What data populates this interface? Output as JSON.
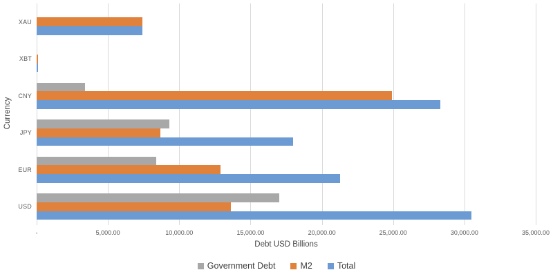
{
  "chart_data": {
    "type": "bar",
    "orientation": "horizontal",
    "title": "",
    "xlabel": "Debt USD Billions",
    "ylabel": "Currency",
    "categories_top_to_bottom": [
      "XAU",
      "XBT",
      "CNY",
      "JPY",
      "EUR",
      "USD"
    ],
    "series": [
      {
        "name": "Government Debt",
        "color": "#a8a8a8",
        "values": [
          0,
          0,
          3400,
          9300,
          8400,
          17000
        ]
      },
      {
        "name": "M2",
        "color": "#e0813c",
        "values": [
          7400,
          100,
          24900,
          8700,
          12900,
          13600
        ]
      },
      {
        "name": "Total",
        "color": "#6b9bd2",
        "values": [
          7400,
          100,
          28300,
          18000,
          21300,
          30500
        ]
      }
    ],
    "xlim": [
      0,
      35000
    ],
    "xtick_labels": [
      "-",
      "5,000.00",
      "10,000.00",
      "15,000.00",
      "20,000.00",
      "25,000.00",
      "30,000.00",
      "35,000.00"
    ],
    "grid": "vertical",
    "gridline_color": "#d9d9d9",
    "legend_position": "bottom",
    "bar_order_in_group_top_to_bottom": [
      "Government Debt",
      "M2",
      "Total"
    ]
  }
}
